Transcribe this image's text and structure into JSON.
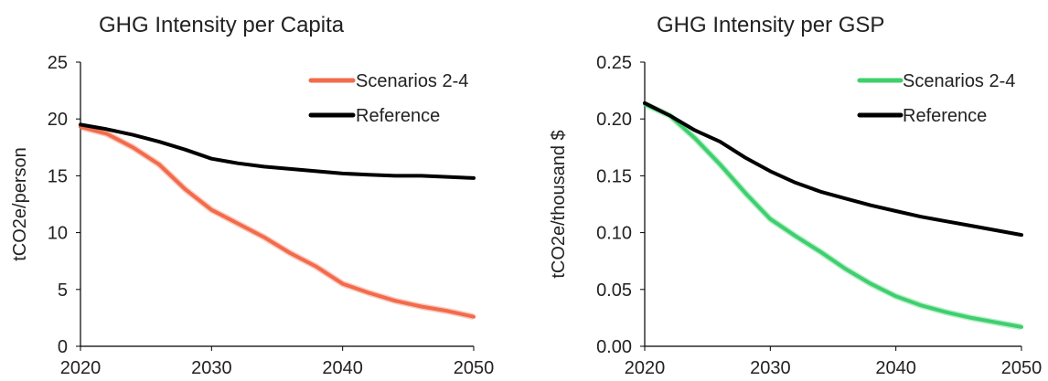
{
  "chart_data": [
    {
      "type": "line",
      "title": "GHG Intensity per Capita",
      "xlabel": "",
      "ylabel": "tCO2e/person",
      "xlim": [
        2020,
        2050
      ],
      "ylim": [
        0,
        25
      ],
      "x_ticks": [
        "2020",
        "2030",
        "2040",
        "2050"
      ],
      "y_ticks": [
        "0",
        "5",
        "10",
        "15",
        "20",
        "25"
      ],
      "grid": false,
      "legend": "top-right",
      "x": [
        2020,
        2022,
        2024,
        2026,
        2028,
        2030,
        2032,
        2034,
        2036,
        2038,
        2040,
        2042,
        2044,
        2046,
        2048,
        2050
      ],
      "series": [
        {
          "name": "Scenarios 2-4",
          "color": "#f26b4b",
          "values": [
            19.3,
            18.7,
            17.5,
            16.0,
            13.8,
            12.0,
            10.8,
            9.6,
            8.2,
            7.0,
            5.5,
            4.7,
            4.0,
            3.5,
            3.1,
            2.6
          ]
        },
        {
          "name": "Reference",
          "color": "#000000",
          "values": [
            19.5,
            19.1,
            18.6,
            18.0,
            17.3,
            16.5,
            16.1,
            15.8,
            15.6,
            15.4,
            15.2,
            15.1,
            15.0,
            15.0,
            14.9,
            14.8
          ]
        }
      ]
    },
    {
      "type": "line",
      "title": "GHG Intensity per GSP",
      "xlabel": "",
      "ylabel": "tCO2e/thousand $",
      "xlim": [
        2020,
        2050
      ],
      "ylim": [
        0,
        0.25
      ],
      "x_ticks": [
        "2020",
        "2030",
        "2040",
        "2050"
      ],
      "y_ticks": [
        "0.00",
        "0.05",
        "0.10",
        "0.15",
        "0.20",
        "0.25"
      ],
      "grid": false,
      "legend": "top-right",
      "x": [
        2020,
        2022,
        2024,
        2026,
        2028,
        2030,
        2032,
        2034,
        2036,
        2038,
        2040,
        2042,
        2044,
        2046,
        2048,
        2050
      ],
      "series": [
        {
          "name": "Scenarios 2-4",
          "color": "#3ecf6e",
          "values": [
            0.213,
            0.203,
            0.183,
            0.16,
            0.135,
            0.112,
            0.097,
            0.083,
            0.068,
            0.055,
            0.044,
            0.036,
            0.03,
            0.025,
            0.021,
            0.017
          ]
        },
        {
          "name": "Reference",
          "color": "#000000",
          "values": [
            0.214,
            0.203,
            0.19,
            0.18,
            0.166,
            0.154,
            0.144,
            0.136,
            0.13,
            0.124,
            0.119,
            0.114,
            0.11,
            0.106,
            0.102,
            0.098
          ]
        }
      ]
    }
  ]
}
